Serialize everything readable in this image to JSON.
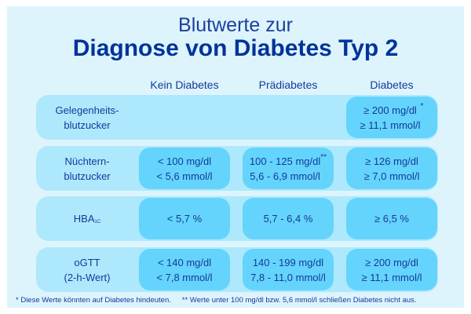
{
  "title": {
    "line1": "Blutwerte zur",
    "line2": "Diagnose von Diabetes Typ 2"
  },
  "columns": [
    "Kein Diabetes",
    "Prädiabetes",
    "Diabetes"
  ],
  "rows": [
    {
      "label": "Gelegenheits-\nblutzucker",
      "cells": [
        "",
        "",
        "≥ 200 mg/dl\n≥ 11,1 mmol/l"
      ],
      "marks": [
        "",
        "",
        "*"
      ]
    },
    {
      "label": "Nüchtern-\nblutzucker",
      "cells": [
        "< 100 mg/dl\n< 5,6 mmol/l",
        "100 - 125 mg/dl\n5,6 - 6,9 mmol/l",
        "≥ 126 mg/dl\n≥ 7,0 mmol/l"
      ],
      "marks": [
        "",
        "**",
        ""
      ]
    },
    {
      "label": "HBA",
      "label_sub": "1C",
      "cells": [
        "< 5,7 %",
        "5,7 - 6,4 %",
        "≥ 6,5 %"
      ]
    },
    {
      "label": "oGTT\n(2-h-Wert)",
      "cells": [
        "< 140 mg/dl\n< 7,8 mmol/l",
        "140 - 199 mg/dl\n7,8 - 11,0 mmol/l",
        "≥ 200 mg/dl\n≥ 11,1 mmol/l"
      ]
    }
  ],
  "footnotes": [
    "*  Diese Werte könnten auf Diabetes hindeuten.",
    "**  Werte unter 100 mg/dl bzw. 5,6 mmol/l schließen Diabetes nicht aus."
  ],
  "colors": {
    "panel": "#ddf4fd",
    "row": "#aee8fc",
    "cell": "#64d4fc",
    "title": "#003399"
  }
}
